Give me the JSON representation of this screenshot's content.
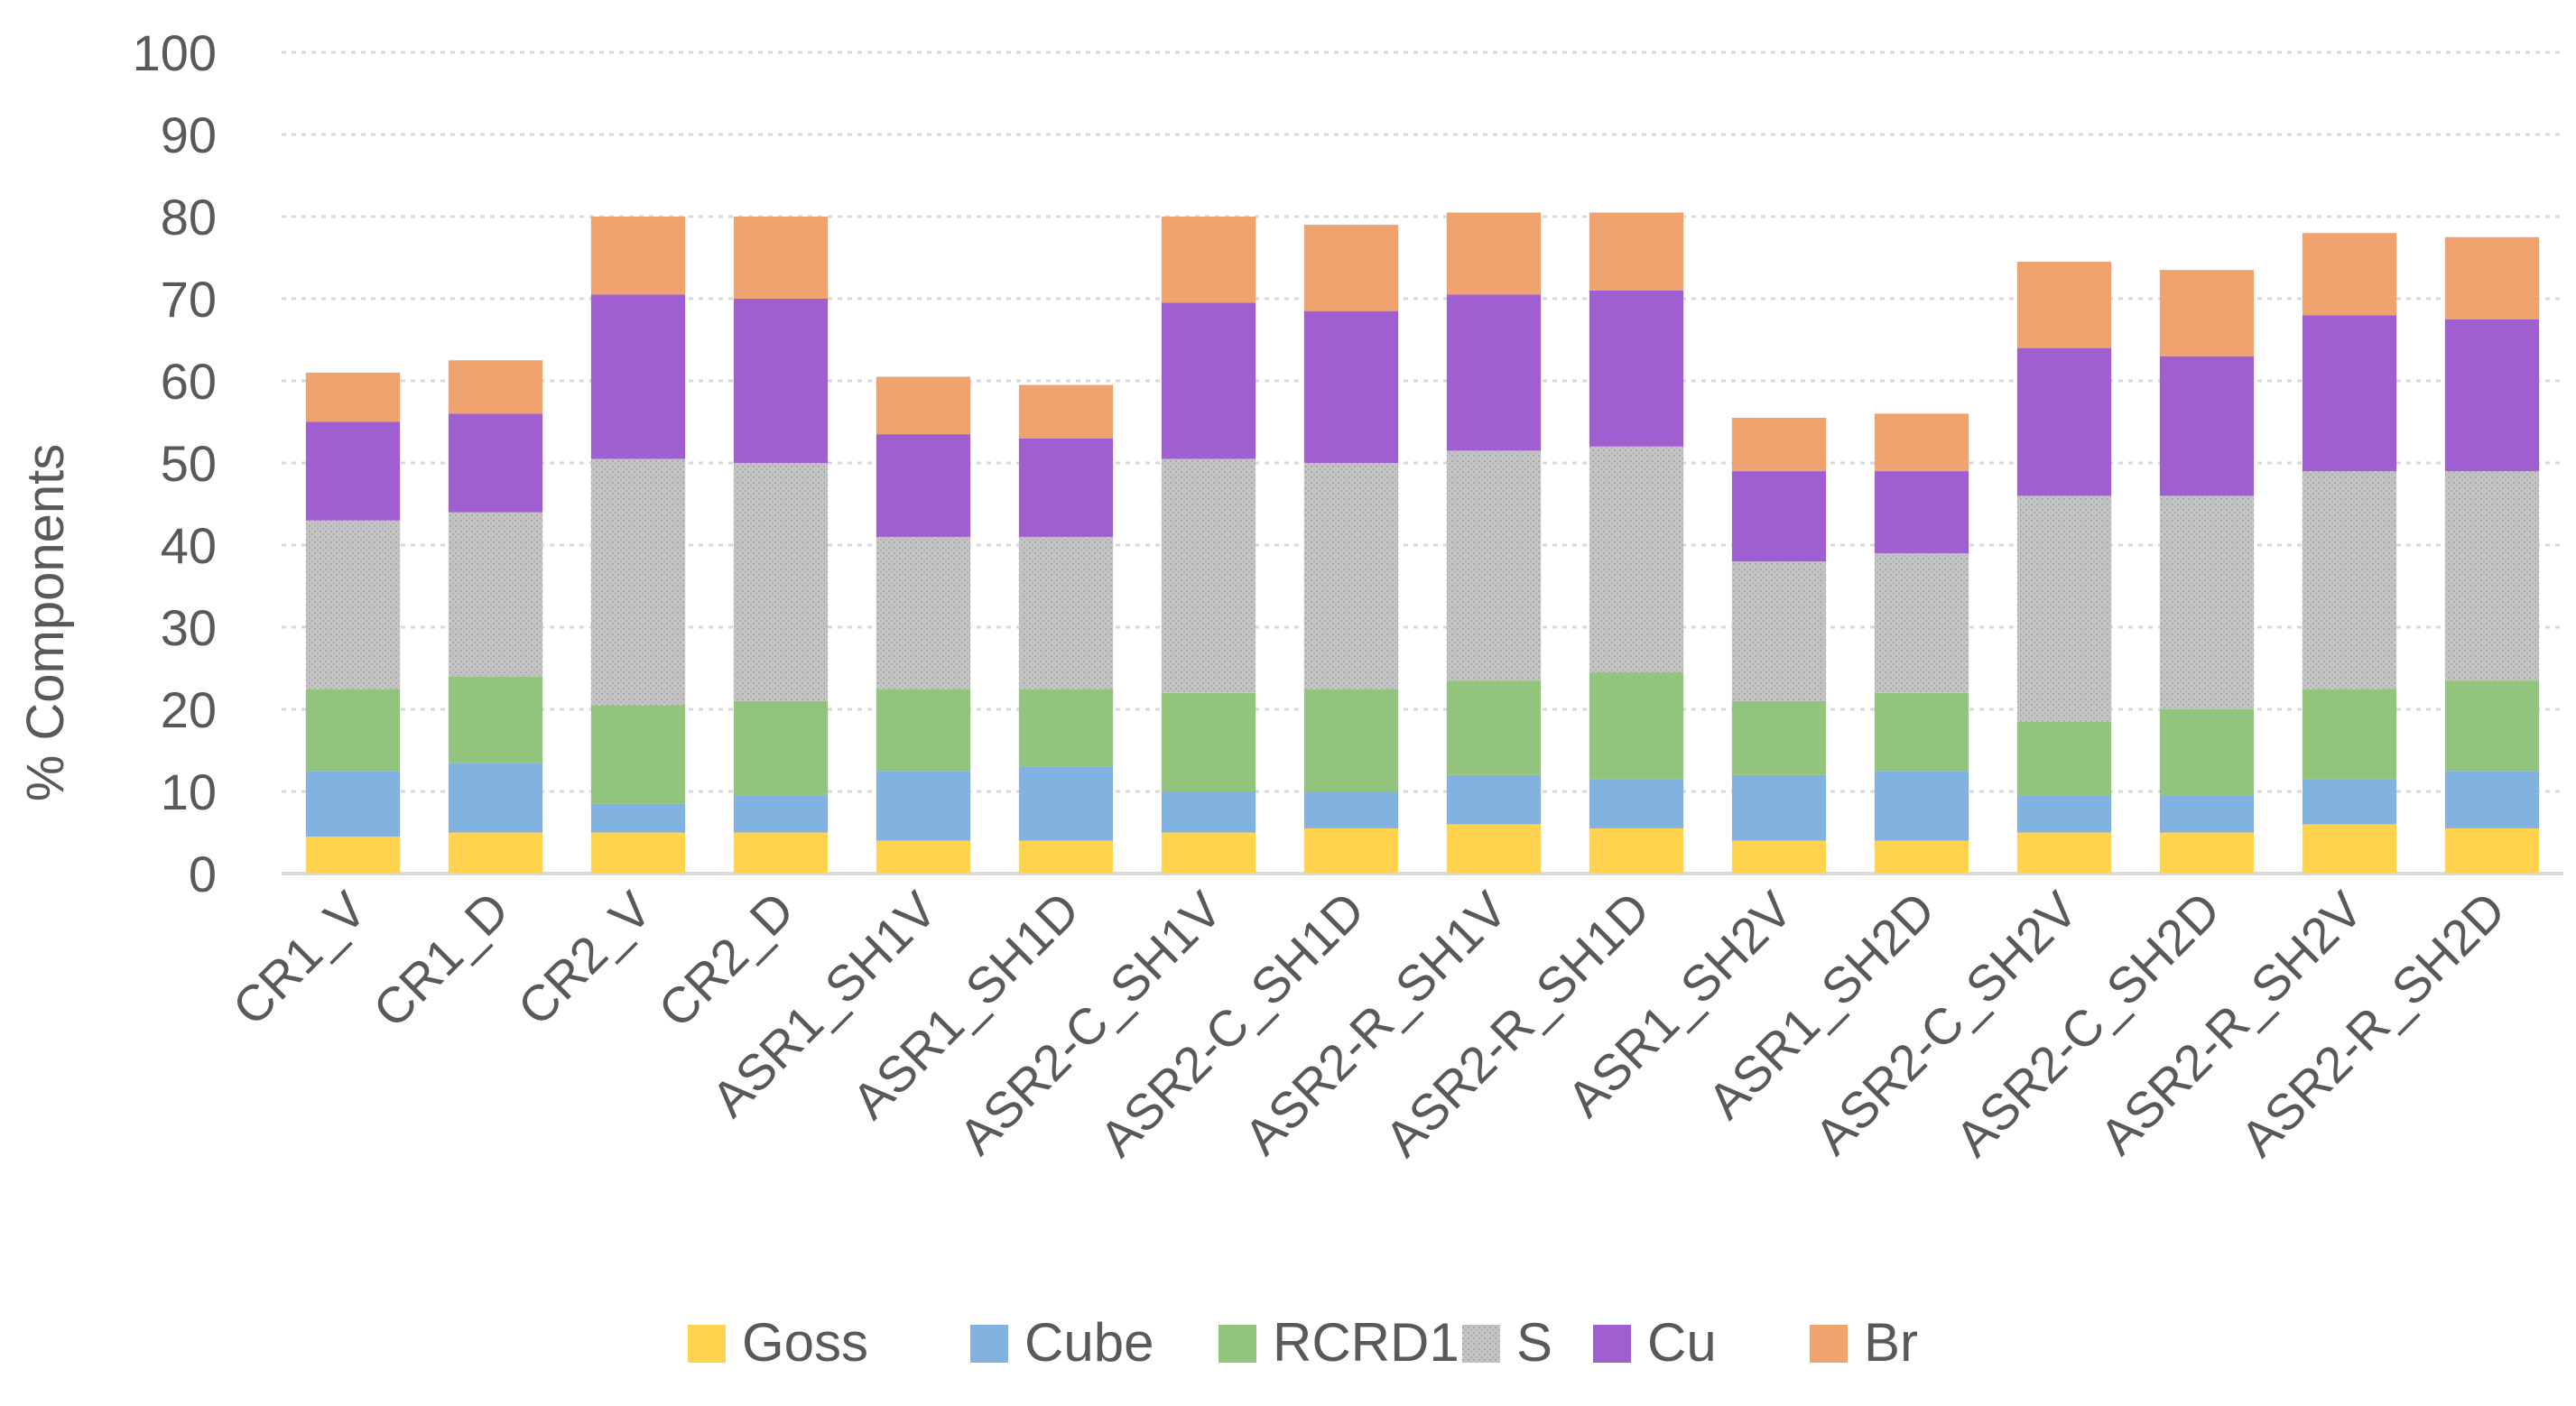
{
  "chart_data": {
    "type": "bar",
    "stacked": true,
    "title": "",
    "xlabel": "",
    "ylabel": "% Components",
    "ylim": [
      0,
      100
    ],
    "yticks": [
      "0",
      "10",
      "20",
      "30",
      "40",
      "50",
      "60",
      "70",
      "80",
      "90",
      "100"
    ],
    "grid": true,
    "legend_position": "bottom",
    "categories": [
      "CR1_V",
      "CR1_D",
      "CR2_V",
      "CR2_D",
      "ASR1_SH1V",
      "ASR1_SH1D",
      "ASR2-C_SH1V",
      "ASR2-C_SH1D",
      "ASR2-R_SH1V",
      "ASR2-R_SH1D",
      "ASR1_SH2V",
      "ASR1_SH2D",
      "ASR2-C_SH2V",
      "ASR2-C_SH2D",
      "ASR2-R_SH2V",
      "ASR2-R_SH2D"
    ],
    "series": [
      {
        "name": "Goss",
        "color": "#ffd34d",
        "values": [
          4.5,
          5,
          5,
          5,
          4,
          4,
          5,
          5.5,
          6,
          5.5,
          4,
          4,
          5,
          5,
          6,
          5.5
        ]
      },
      {
        "name": "Cube",
        "color": "#82b3e0",
        "values": [
          8,
          8.5,
          3.5,
          4.5,
          8.5,
          9,
          5,
          4.5,
          6,
          6,
          8,
          8.5,
          4.5,
          4.5,
          5.5,
          7
        ]
      },
      {
        "name": "RCRD1",
        "color": "#93c47d",
        "values": [
          10,
          10.5,
          12,
          11.5,
          10,
          9.5,
          12,
          12.5,
          11.5,
          13,
          9,
          9.5,
          9,
          10.5,
          11,
          11
        ]
      },
      {
        "name": "S",
        "color": "#c0c0c0",
        "values": [
          20.5,
          20,
          30,
          29,
          18.5,
          18.5,
          28.5,
          27.5,
          28,
          27.5,
          17,
          17,
          27.5,
          26,
          26.5,
          25.5
        ]
      },
      {
        "name": "Cu",
        "color": "#9f5fd0",
        "values": [
          12,
          12,
          20,
          20,
          12.5,
          12,
          19,
          18.5,
          19,
          19,
          11,
          10,
          18,
          17,
          19,
          18.5
        ]
      },
      {
        "name": "Br",
        "color": "#f0a26f",
        "values": [
          6,
          6.5,
          9.5,
          10,
          7,
          6.5,
          10.5,
          10.5,
          10,
          9.5,
          6.5,
          7,
          10.5,
          10.5,
          10,
          10
        ]
      }
    ]
  }
}
